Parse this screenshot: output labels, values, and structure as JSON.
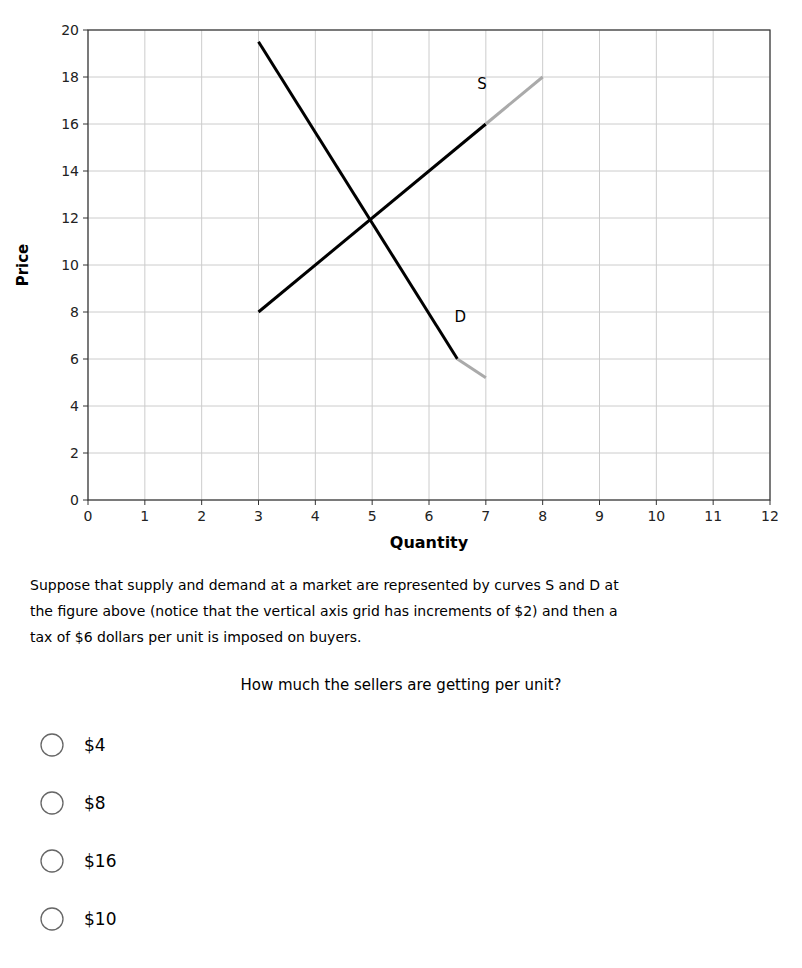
{
  "chart_data": {
    "type": "line",
    "xlabel": "Quantity",
    "ylabel": "Price",
    "xlim": [
      0,
      12
    ],
    "ylim": [
      0,
      20
    ],
    "xticks": [
      0,
      1,
      2,
      3,
      4,
      5,
      6,
      7,
      8,
      9,
      10,
      11,
      12
    ],
    "yticks": [
      0,
      2,
      4,
      6,
      8,
      10,
      12,
      14,
      16,
      18,
      20
    ],
    "grid": true,
    "series": [
      {
        "x": [
          3,
          7
        ],
        "values": [
          8,
          16
        ],
        "color": "#000000"
      },
      {
        "x": [
          7,
          8
        ],
        "values": [
          16,
          18
        ],
        "color": "#aaaaaa"
      },
      {
        "x": [
          3,
          6.5
        ],
        "values": [
          19.5,
          6.0
        ],
        "color": "#000000"
      },
      {
        "x": [
          6.5,
          7
        ],
        "values": [
          6.0,
          5.2
        ],
        "color": "#aaaaaa"
      }
    ],
    "annotations": [
      {
        "text": "S",
        "x": 6.85,
        "y": 17.7
      },
      {
        "text": "D",
        "x": 6.45,
        "y": 7.8
      }
    ]
  },
  "paragraph": [
    "Suppose that supply and demand at a market are represented by curves S and D at",
    "the figure above (notice that the vertical axis grid has increments of $2) and then a",
    "tax of $6 dollars per unit is imposed on buyers."
  ],
  "question": "How much the sellers are getting per unit?",
  "choices": [
    "$4",
    "$8",
    "$16",
    "$10"
  ]
}
